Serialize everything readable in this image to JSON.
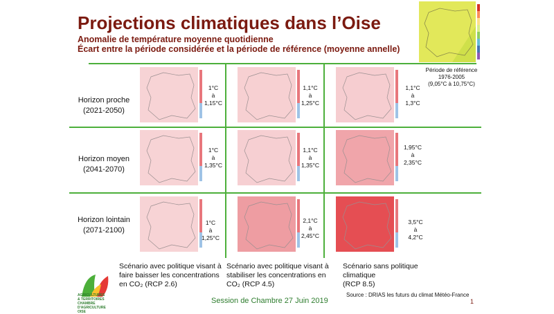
{
  "header": {
    "title": "Projections climatiques dans l’Oise",
    "subtitle_line1": "Anomalie de température moyenne quotidienne",
    "subtitle_line2": "Écart entre la période considérée et la période de référence (moyenne annelle)"
  },
  "reference": {
    "line1": "Période de référence",
    "line2": "1976-2005",
    "line3": "(9,05°C à 10,75°C)"
  },
  "rows": [
    {
      "label_line1": "Horizon proche",
      "label_line2": "(2021-2050)"
    },
    {
      "label_line1": "Horizon moyen",
      "label_line2": "(2041-2070)"
    },
    {
      "label_line1": "Horizon lointain",
      "label_line2": "(2071-2100)"
    }
  ],
  "cells": [
    [
      {
        "min": "1°C",
        "a": "à",
        "max": "1,15°C",
        "color": "#f7d3d5"
      },
      {
        "min": "1,1°C",
        "a": "à",
        "max": "1,25°C",
        "color": "#f7d0d2"
      },
      {
        "min": "1,1°C",
        "a": "à",
        "max": "1,3°C",
        "color": "#f6cdd0"
      }
    ],
    [
      {
        "min": "1°C",
        "a": "à",
        "max": "1,35°C",
        "color": "#f7d3d5"
      },
      {
        "min": "1,1°C",
        "a": "à",
        "max": "1,35°C",
        "color": "#f6cfd2"
      },
      {
        "min": "1,95°C",
        "a": "à",
        "max": "2,35°C",
        "color": "#f0a5aa"
      }
    ],
    [
      {
        "min": "1°C",
        "a": "à",
        "max": "1,25°C",
        "color": "#f7d3d5"
      },
      {
        "min": "2,1°C",
        "a": "à",
        "max": "2,45°C",
        "color": "#ee9da2"
      },
      {
        "min": "3,5°C",
        "a": "à",
        "max": "4,2°C",
        "color": "#e54e53"
      }
    ]
  ],
  "scenarios": [
    {
      "line1": "Scénario avec politique visant à",
      "line2": "faire baisser les concentrations",
      "line3": "en CO₂ (RCP 2.6)"
    },
    {
      "line1": "Scénario avec politique visant à",
      "line2": "stabiliser les concentrations en",
      "line3": "CO₂ (RCP 4.5)"
    },
    {
      "line1": "Scénario sans politique",
      "line2": "climatique",
      "line3": "(RCP 8.5)"
    }
  ],
  "footer": {
    "session": "Session de Chambre 27 Juin 2019",
    "source": "Source : DRIAS les futurs du climat Météo-France",
    "page": "1"
  },
  "logo": {
    "line1": "AGRICULTURES",
    "line2": "& TERRITOIRES",
    "line3": "CHAMBRE D'AGRICULTURE",
    "line4": "OISE"
  },
  "colors": {
    "title": "#7b1a10",
    "grid": "#4caf3a",
    "session": "#2e7d2e",
    "topmap_main": "#e2e85a",
    "topmap_secondary": "#cfe04a"
  }
}
